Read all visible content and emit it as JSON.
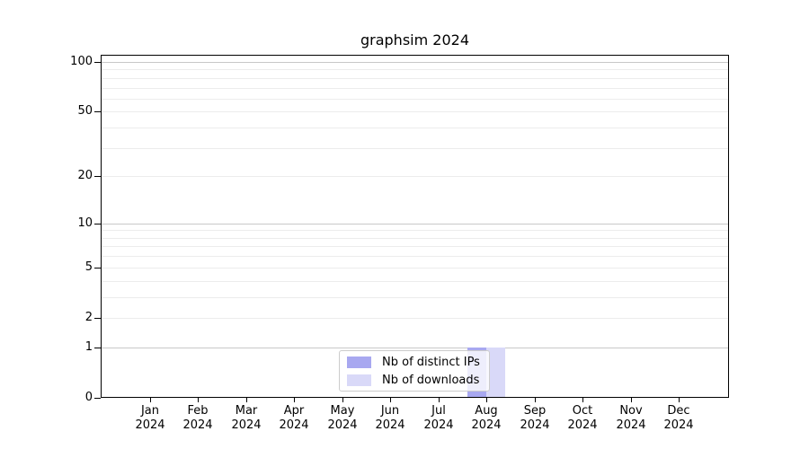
{
  "title": "graphsim 2024",
  "chart_data": {
    "type": "bar",
    "title": "graphsim 2024",
    "categories": [
      "Jan 2024",
      "Feb 2024",
      "Mar 2024",
      "Apr 2024",
      "May 2024",
      "Jun 2024",
      "Jul 2024",
      "Aug 2024",
      "Sep 2024",
      "Oct 2024",
      "Nov 2024",
      "Dec 2024"
    ],
    "series": [
      {
        "name": "Nb of distinct IPs",
        "color": "#a8a8f0",
        "values": [
          0,
          0,
          0,
          0,
          0,
          0,
          0,
          1,
          0,
          0,
          0,
          0
        ]
      },
      {
        "name": "Nb of downloads",
        "color": "#d9d9f8",
        "values": [
          0,
          0,
          0,
          0,
          0,
          0,
          0,
          1,
          0,
          0,
          0,
          0
        ]
      }
    ],
    "xlabel": "",
    "ylabel": "",
    "yscale": "log10(1+x)",
    "ylim": [
      0,
      110
    ],
    "ytick_labels": [
      0,
      1,
      2,
      5,
      10,
      20,
      50,
      100
    ],
    "major_gridlines": [
      1,
      10,
      100
    ],
    "minor_gridlines": [
      2,
      3,
      4,
      5,
      6,
      7,
      8,
      9,
      20,
      30,
      40,
      50,
      60,
      70,
      80,
      90
    ],
    "grid": "on",
    "legend_position": "lower center inside axes"
  },
  "colors": {
    "major_grid": "#c8c8c8",
    "minor_grid": "#ececec",
    "axis": "#000000",
    "text": "#000000",
    "legend_border": "#cccccc"
  }
}
